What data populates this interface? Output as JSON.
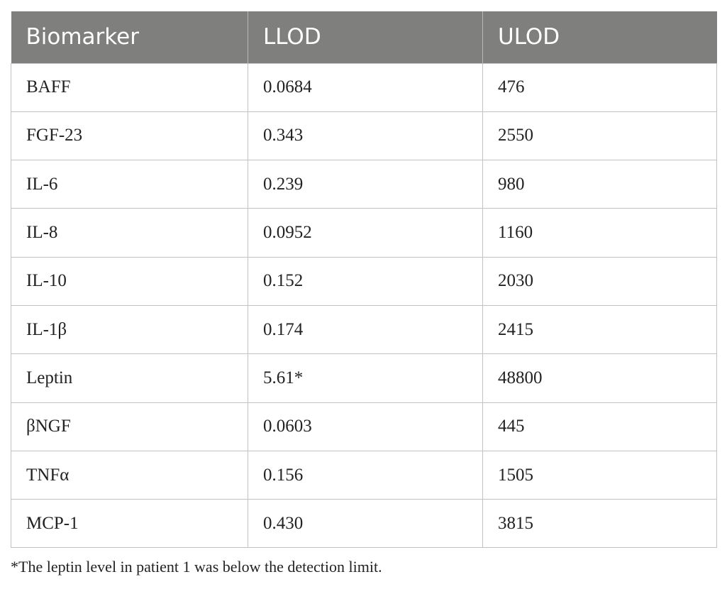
{
  "table": {
    "headers": [
      "Biomarker",
      "LLOD",
      "ULOD"
    ],
    "rows": [
      [
        "BAFF",
        "0.0684",
        "476"
      ],
      [
        "FGF-23",
        "0.343",
        "2550"
      ],
      [
        "IL-6",
        "0.239",
        "980"
      ],
      [
        "IL-8",
        "0.0952",
        "1160"
      ],
      [
        "IL-10",
        "0.152",
        "2030"
      ],
      [
        "IL-1β",
        "0.174",
        "2415"
      ],
      [
        "Leptin",
        "5.61*",
        "48800"
      ],
      [
        "βNGF",
        "0.0603",
        "445"
      ],
      [
        "TNFα",
        "0.156",
        "1505"
      ],
      [
        "MCP-1",
        "0.430",
        "3815"
      ]
    ]
  },
  "footnote": "*The leptin level in patient 1 was below the detection limit.",
  "colors": {
    "header_background": "#7f7f7e",
    "header_text": "#ffffff",
    "grid_lines": "#c2c2c2"
  }
}
